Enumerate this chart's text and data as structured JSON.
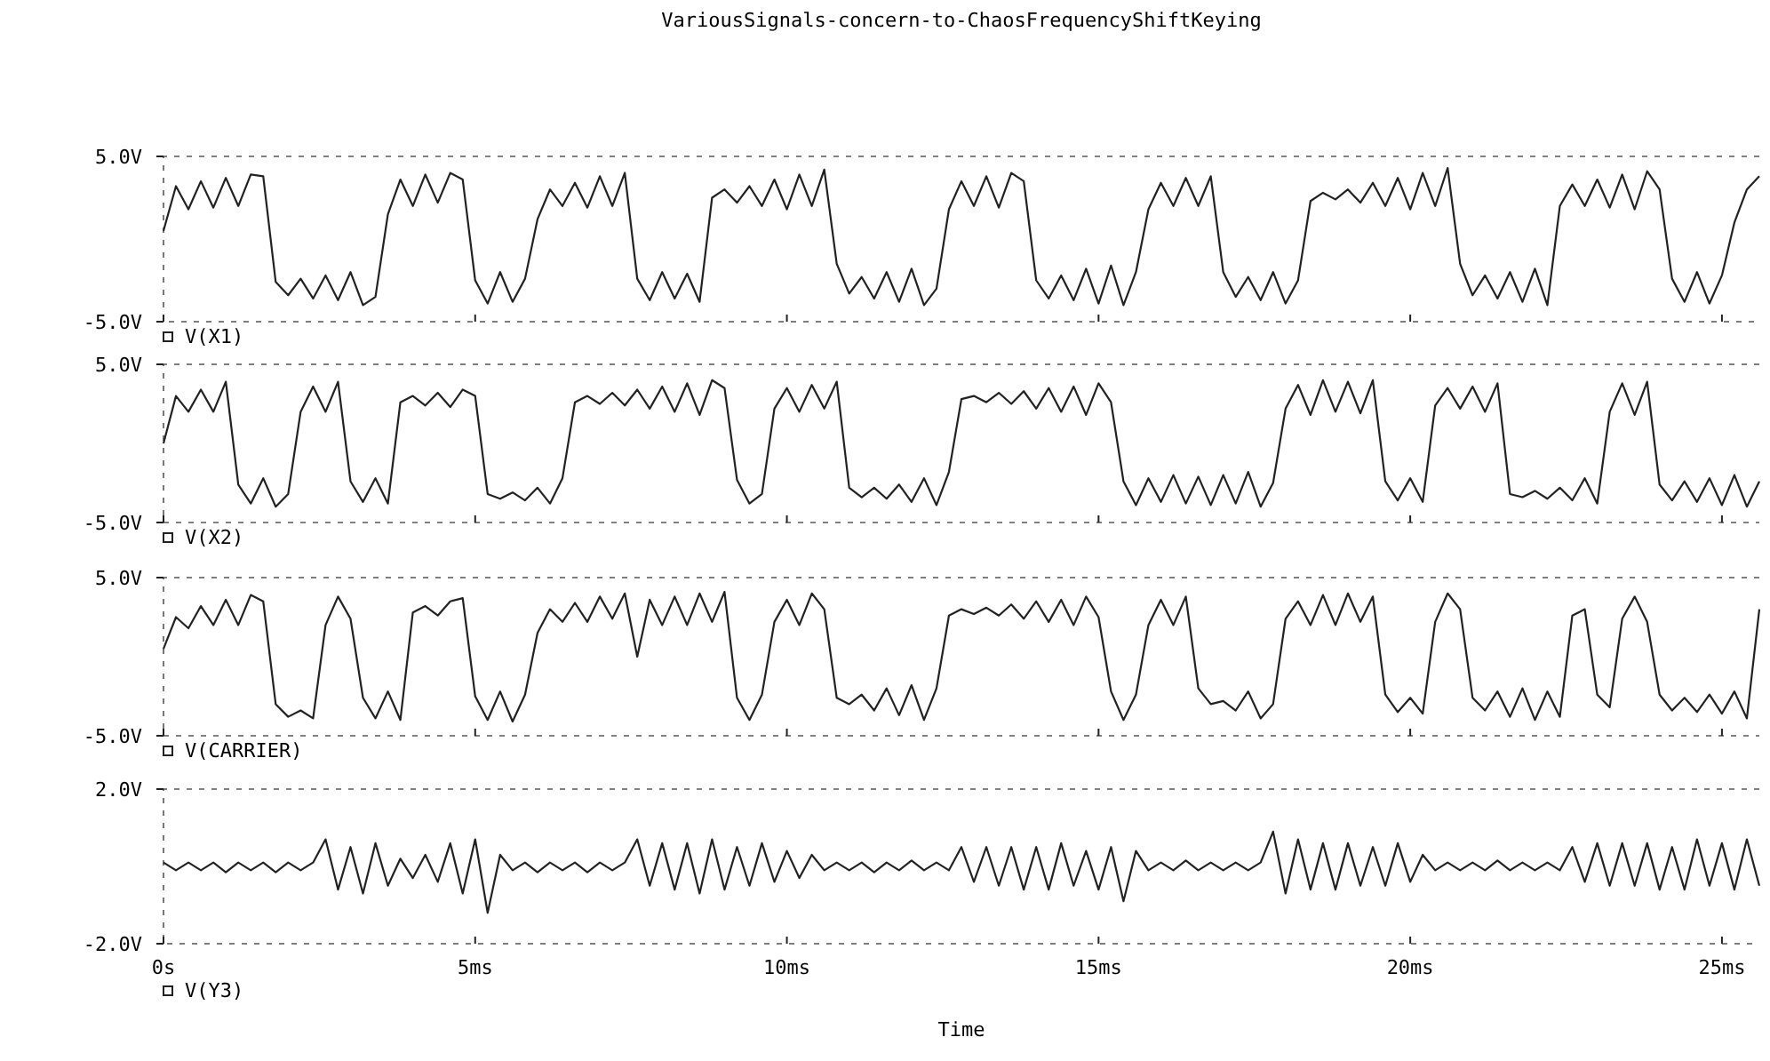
{
  "chart_data": [
    {
      "type": "line",
      "title": "VariousSignals-concern-to-ChaosFrequencyShiftKeying",
      "xlim": [
        0,
        25.6
      ],
      "xticks": [
        {
          "value": 0,
          "label": null
        },
        {
          "value": 5,
          "label": null
        },
        {
          "value": 10,
          "label": null
        },
        {
          "value": 15,
          "label": null
        },
        {
          "value": 20,
          "label": null
        },
        {
          "value": 25,
          "label": null
        }
      ],
      "ylim": [
        -5,
        5
      ],
      "yticks": [
        {
          "value": 5,
          "label": "5.0V"
        },
        {
          "value": -5,
          "label": "-5.0V"
        }
      ],
      "tick_labels": "y",
      "legend": "bottom left",
      "x": [
        0,
        0.2,
        0.4,
        0.6,
        0.8,
        1,
        1.2,
        1.4,
        1.6,
        1.8,
        2,
        2.2,
        2.4,
        2.6,
        2.8,
        3,
        3.2,
        3.4,
        3.6,
        3.8,
        4,
        4.2,
        4.4,
        4.6,
        4.8,
        5,
        5.2,
        5.4,
        5.6,
        5.8,
        6,
        6.2,
        6.4,
        6.6,
        6.8,
        7,
        7.2,
        7.4,
        7.6,
        7.8,
        8,
        8.2,
        8.4,
        8.6,
        8.8,
        9,
        9.2,
        9.4,
        9.6,
        9.8,
        10,
        10.2,
        10.4,
        10.6,
        10.8,
        11,
        11.2,
        11.4,
        11.6,
        11.8,
        12,
        12.2,
        12.4,
        12.6,
        12.8,
        13,
        13.2,
        13.4,
        13.6,
        13.8,
        14,
        14.2,
        14.4,
        14.6,
        14.8,
        15,
        15.2,
        15.4,
        15.6,
        15.8,
        16,
        16.2,
        16.4,
        16.6,
        16.8,
        17,
        17.2,
        17.4,
        17.6,
        17.8,
        18,
        18.2,
        18.4,
        18.6,
        18.8,
        19,
        19.2,
        19.4,
        19.6,
        19.8,
        20,
        20.2,
        20.4,
        20.6,
        20.8,
        21,
        21.2,
        21.4,
        21.6,
        21.8,
        22,
        22.2,
        22.4,
        22.6,
        22.8,
        23,
        23.2,
        23.4,
        23.6,
        23.8,
        24,
        24.2,
        24.4,
        24.6,
        24.8,
        25,
        25.2,
        25.4,
        25.6
      ],
      "series": [
        {
          "name": "V(X1)",
          "color": "#222222",
          "values": [
            0.5,
            3.2,
            1.8,
            3.5,
            1.9,
            3.7,
            2.0,
            3.9,
            3.8,
            -2.6,
            -3.4,
            -2.4,
            -3.6,
            -2.2,
            -3.7,
            -2.0,
            -4.0,
            -3.5,
            1.5,
            3.6,
            2.0,
            3.9,
            2.2,
            4.0,
            3.6,
            -2.5,
            -3.9,
            -2.0,
            -3.8,
            -2.4,
            1.2,
            3.0,
            2.0,
            3.4,
            1.9,
            3.8,
            2.0,
            4.0,
            -2.4,
            -3.7,
            -2.0,
            -3.6,
            -2.1,
            -3.8,
            2.5,
            3.0,
            2.2,
            3.2,
            2.0,
            3.6,
            1.8,
            3.9,
            2.0,
            4.2,
            -1.5,
            -3.3,
            -2.3,
            -3.6,
            -2.0,
            -3.8,
            -1.8,
            -4.0,
            -3.0,
            1.8,
            3.5,
            2.0,
            3.8,
            1.9,
            4.0,
            3.5,
            -2.5,
            -3.6,
            -2.2,
            -3.7,
            -1.8,
            -3.9,
            -1.6,
            -4.0,
            -2.0,
            1.8,
            3.4,
            2.0,
            3.7,
            2.0,
            3.8,
            -2.0,
            -3.5,
            -2.3,
            -3.7,
            -2.0,
            -3.9,
            -2.5,
            2.3,
            2.8,
            2.4,
            3.0,
            2.2,
            3.4,
            2.0,
            3.7,
            1.8,
            4.0,
            2.0,
            4.3,
            -1.5,
            -3.4,
            -2.2,
            -3.6,
            -2.0,
            -3.8,
            -1.8,
            -4.0,
            2.0,
            3.3,
            2.0,
            3.6,
            1.9,
            3.9,
            1.8,
            4.1,
            3.0,
            -2.4,
            -3.8,
            -2.0,
            -3.9,
            -2.2,
            1.0,
            3.0,
            3.8
          ]
        }
      ]
    },
    {
      "type": "line",
      "xlim": [
        0,
        25.6
      ],
      "xticks": [
        {
          "value": 0,
          "label": null
        },
        {
          "value": 5,
          "label": null
        },
        {
          "value": 10,
          "label": null
        },
        {
          "value": 15,
          "label": null
        },
        {
          "value": 20,
          "label": null
        },
        {
          "value": 25,
          "label": null
        }
      ],
      "ylim": [
        -5,
        5
      ],
      "yticks": [
        {
          "value": 5,
          "label": "5.0V"
        },
        {
          "value": -5,
          "label": "-5.0V"
        }
      ],
      "tick_labels": "y",
      "legend": "bottom left",
      "x": [
        0,
        0.2,
        0.4,
        0.6,
        0.8,
        1,
        1.2,
        1.4,
        1.6,
        1.8,
        2,
        2.2,
        2.4,
        2.6,
        2.8,
        3,
        3.2,
        3.4,
        3.6,
        3.8,
        4,
        4.2,
        4.4,
        4.6,
        4.8,
        5,
        5.2,
        5.4,
        5.6,
        5.8,
        6,
        6.2,
        6.4,
        6.6,
        6.8,
        7,
        7.2,
        7.4,
        7.6,
        7.8,
        8,
        8.2,
        8.4,
        8.6,
        8.8,
        9,
        9.2,
        9.4,
        9.6,
        9.8,
        10,
        10.2,
        10.4,
        10.6,
        10.8,
        11,
        11.2,
        11.4,
        11.6,
        11.8,
        12,
        12.2,
        12.4,
        12.6,
        12.8,
        13,
        13.2,
        13.4,
        13.6,
        13.8,
        14,
        14.2,
        14.4,
        14.6,
        14.8,
        15,
        15.2,
        15.4,
        15.6,
        15.8,
        16,
        16.2,
        16.4,
        16.6,
        16.8,
        17,
        17.2,
        17.4,
        17.6,
        17.8,
        18,
        18.2,
        18.4,
        18.6,
        18.8,
        19,
        19.2,
        19.4,
        19.6,
        19.8,
        20,
        20.2,
        20.4,
        20.6,
        20.8,
        21,
        21.2,
        21.4,
        21.6,
        21.8,
        22,
        22.2,
        22.4,
        22.6,
        22.8,
        23,
        23.2,
        23.4,
        23.6,
        23.8,
        24,
        24.2,
        24.4,
        24.6,
        24.8,
        25,
        25.2,
        25.4,
        25.6
      ],
      "series": [
        {
          "name": "V(X2)",
          "color": "#222222",
          "values": [
            0.0,
            3.0,
            2.0,
            3.4,
            2.0,
            3.9,
            -2.6,
            -3.8,
            -2.2,
            -4.0,
            -3.2,
            2.0,
            3.6,
            2.0,
            3.9,
            -2.4,
            -3.7,
            -2.2,
            -3.8,
            2.6,
            3.0,
            2.4,
            3.2,
            2.3,
            3.4,
            3.0,
            -3.2,
            -3.5,
            -3.1,
            -3.6,
            -2.8,
            -3.8,
            -2.2,
            2.6,
            3.0,
            2.5,
            3.2,
            2.4,
            3.4,
            2.2,
            3.6,
            2.0,
            3.8,
            1.8,
            4.0,
            3.5,
            -2.3,
            -3.8,
            -3.2,
            2.2,
            3.5,
            2.0,
            3.7,
            2.2,
            3.9,
            -2.8,
            -3.4,
            -2.8,
            -3.5,
            -2.6,
            -3.7,
            -2.2,
            -3.9,
            -1.8,
            2.8,
            3.0,
            2.6,
            3.2,
            2.5,
            3.3,
            2.2,
            3.5,
            2.0,
            3.6,
            1.8,
            3.8,
            2.6,
            -2.4,
            -3.9,
            -2.2,
            -3.7,
            -2.0,
            -3.8,
            -2.1,
            -3.9,
            -2.0,
            -3.8,
            -1.8,
            -4.0,
            -2.5,
            2.2,
            3.7,
            1.8,
            4.0,
            2.0,
            3.9,
            1.9,
            4.0,
            -2.4,
            -3.6,
            -2.2,
            -3.7,
            2.4,
            3.5,
            2.2,
            3.6,
            2.0,
            3.8,
            -3.2,
            -3.4,
            -3.0,
            -3.5,
            -2.8,
            -3.6,
            -2.2,
            -3.8,
            2.0,
            3.8,
            1.8,
            3.9,
            -2.6,
            -3.6,
            -2.4,
            -3.7,
            -2.2,
            -3.9,
            -2.0,
            -4.0,
            -2.4
          ]
        }
      ]
    },
    {
      "type": "line",
      "xlim": [
        0,
        25.6
      ],
      "xticks": [
        {
          "value": 0,
          "label": null
        },
        {
          "value": 5,
          "label": null
        },
        {
          "value": 10,
          "label": null
        },
        {
          "value": 15,
          "label": null
        },
        {
          "value": 20,
          "label": null
        },
        {
          "value": 25,
          "label": null
        }
      ],
      "ylim": [
        -5,
        5
      ],
      "yticks": [
        {
          "value": 5,
          "label": "5.0V"
        },
        {
          "value": -5,
          "label": "-5.0V"
        }
      ],
      "tick_labels": "y",
      "legend": "bottom left",
      "x": [
        0,
        0.2,
        0.4,
        0.6,
        0.8,
        1,
        1.2,
        1.4,
        1.6,
        1.8,
        2,
        2.2,
        2.4,
        2.6,
        2.8,
        3,
        3.2,
        3.4,
        3.6,
        3.8,
        4,
        4.2,
        4.4,
        4.6,
        4.8,
        5,
        5.2,
        5.4,
        5.6,
        5.8,
        6,
        6.2,
        6.4,
        6.6,
        6.8,
        7,
        7.2,
        7.4,
        7.6,
        7.8,
        8,
        8.2,
        8.4,
        8.6,
        8.8,
        9,
        9.2,
        9.4,
        9.6,
        9.8,
        10,
        10.2,
        10.4,
        10.6,
        10.8,
        11,
        11.2,
        11.4,
        11.6,
        11.8,
        12,
        12.2,
        12.4,
        12.6,
        12.8,
        13,
        13.2,
        13.4,
        13.6,
        13.8,
        14,
        14.2,
        14.4,
        14.6,
        14.8,
        15,
        15.2,
        15.4,
        15.6,
        15.8,
        16,
        16.2,
        16.4,
        16.6,
        16.8,
        17,
        17.2,
        17.4,
        17.6,
        17.8,
        18,
        18.2,
        18.4,
        18.6,
        18.8,
        19,
        19.2,
        19.4,
        19.6,
        19.8,
        20,
        20.2,
        20.4,
        20.6,
        20.8,
        21,
        21.2,
        21.4,
        21.6,
        21.8,
        22,
        22.2,
        22.4,
        22.6,
        22.8,
        23,
        23.2,
        23.4,
        23.6,
        23.8,
        24,
        24.2,
        24.4,
        24.6,
        24.8,
        25,
        25.2,
        25.4,
        25.6
      ],
      "series": [
        {
          "name": "V(CARRIER)",
          "color": "#222222",
          "values": [
            0.5,
            2.5,
            1.8,
            3.2,
            2.0,
            3.6,
            2.0,
            3.9,
            3.5,
            -3.0,
            -3.8,
            -3.4,
            -3.9,
            2.0,
            3.8,
            2.4,
            -2.6,
            -3.9,
            -2.2,
            -4.0,
            2.8,
            3.2,
            2.6,
            3.5,
            3.7,
            -2.5,
            -4.0,
            -2.2,
            -4.1,
            -2.4,
            1.5,
            3.0,
            2.2,
            3.4,
            2.2,
            3.8,
            2.4,
            4.0,
            0.0,
            3.6,
            2.0,
            3.8,
            2.0,
            4.0,
            2.2,
            4.1,
            -2.6,
            -4.0,
            -2.4,
            2.2,
            3.6,
            2.0,
            4.0,
            3.0,
            -2.6,
            -3.0,
            -2.4,
            -3.4,
            -2.0,
            -3.7,
            -1.8,
            -4.0,
            -2.0,
            2.6,
            3.0,
            2.7,
            3.1,
            2.6,
            3.3,
            2.4,
            3.5,
            2.2,
            3.6,
            2.0,
            3.8,
            2.5,
            -2.2,
            -4.0,
            -2.4,
            2.0,
            3.6,
            2.0,
            3.8,
            -2.0,
            -3.0,
            -2.8,
            -3.4,
            -2.2,
            -3.9,
            -3.0,
            2.4,
            3.5,
            2.0,
            3.9,
            2.0,
            4.0,
            2.2,
            3.8,
            -2.4,
            -3.5,
            -2.6,
            -3.6,
            2.2,
            4.0,
            3.0,
            -2.6,
            -3.4,
            -2.2,
            -3.8,
            -2.0,
            -4.0,
            -2.2,
            -3.8,
            2.6,
            3.0,
            -2.4,
            -3.2,
            2.4,
            3.8,
            2.2,
            -2.4,
            -3.4,
            -2.6,
            -3.5,
            -2.4,
            -3.6,
            -2.2,
            -3.9,
            3.0
          ]
        }
      ]
    },
    {
      "type": "line",
      "xlabel": "Time",
      "xlim": [
        0,
        25.6
      ],
      "xticks": [
        {
          "value": 0,
          "label": "0s"
        },
        {
          "value": 5,
          "label": "5ms"
        },
        {
          "value": 10,
          "label": "10ms"
        },
        {
          "value": 15,
          "label": "15ms"
        },
        {
          "value": 20,
          "label": "20ms"
        },
        {
          "value": 25,
          "label": "25ms"
        }
      ],
      "ylim": [
        -2,
        2
      ],
      "yticks": [
        {
          "value": 2,
          "label": "2.0V"
        },
        {
          "value": -2,
          "label": "-2.0V"
        }
      ],
      "legend": "bottom left",
      "x": [
        0,
        0.2,
        0.4,
        0.6,
        0.8,
        1,
        1.2,
        1.4,
        1.6,
        1.8,
        2,
        2.2,
        2.4,
        2.6,
        2.8,
        3,
        3.2,
        3.4,
        3.6,
        3.8,
        4,
        4.2,
        4.4,
        4.6,
        4.8,
        5,
        5.2,
        5.4,
        5.6,
        5.8,
        6,
        6.2,
        6.4,
        6.6,
        6.8,
        7,
        7.2,
        7.4,
        7.6,
        7.8,
        8,
        8.2,
        8.4,
        8.6,
        8.8,
        9,
        9.2,
        9.4,
        9.6,
        9.8,
        10,
        10.2,
        10.4,
        10.6,
        10.8,
        11,
        11.2,
        11.4,
        11.6,
        11.8,
        12,
        12.2,
        12.4,
        12.6,
        12.8,
        13,
        13.2,
        13.4,
        13.6,
        13.8,
        14,
        14.2,
        14.4,
        14.6,
        14.8,
        15,
        15.2,
        15.4,
        15.6,
        15.8,
        16,
        16.2,
        16.4,
        16.6,
        16.8,
        17,
        17.2,
        17.4,
        17.6,
        17.8,
        18,
        18.2,
        18.4,
        18.6,
        18.8,
        19,
        19.2,
        19.4,
        19.6,
        19.8,
        20,
        20.2,
        20.4,
        20.6,
        20.8,
        21,
        21.2,
        21.4,
        21.6,
        21.8,
        22,
        22.2,
        22.4,
        22.6,
        22.8,
        23,
        23.2,
        23.4,
        23.6,
        23.8,
        24,
        24.2,
        24.4,
        24.6,
        24.8,
        25,
        25.2,
        25.4,
        25.6
      ],
      "series": [
        {
          "name": "V(Y3)",
          "color": "#222222",
          "values": [
            0.1,
            -0.1,
            0.1,
            -0.1,
            0.1,
            -0.15,
            0.1,
            -0.1,
            0.1,
            -0.15,
            0.1,
            -0.1,
            0.1,
            0.7,
            -0.6,
            0.5,
            -0.7,
            0.6,
            -0.5,
            0.2,
            -0.3,
            0.3,
            -0.4,
            0.6,
            -0.7,
            0.7,
            -1.2,
            0.3,
            -0.1,
            0.1,
            -0.15,
            0.1,
            -0.1,
            0.1,
            -0.15,
            0.1,
            -0.1,
            0.1,
            0.7,
            -0.5,
            0.6,
            -0.6,
            0.6,
            -0.7,
            0.7,
            -0.6,
            0.5,
            -0.5,
            0.6,
            -0.4,
            0.4,
            -0.3,
            0.3,
            -0.1,
            0.1,
            -0.1,
            0.1,
            -0.15,
            0.1,
            -0.1,
            0.15,
            -0.1,
            0.1,
            -0.1,
            0.5,
            -0.4,
            0.5,
            -0.5,
            0.5,
            -0.6,
            0.5,
            -0.6,
            0.6,
            -0.5,
            0.4,
            -0.6,
            0.5,
            -0.9,
            0.4,
            -0.1,
            0.1,
            -0.1,
            0.15,
            -0.1,
            0.1,
            -0.1,
            0.1,
            -0.1,
            0.1,
            0.9,
            -0.7,
            0.7,
            -0.6,
            0.6,
            -0.6,
            0.6,
            -0.5,
            0.5,
            -0.5,
            0.6,
            -0.4,
            0.3,
            -0.1,
            0.1,
            -0.1,
            0.1,
            -0.1,
            0.15,
            -0.1,
            0.1,
            -0.1,
            0.1,
            -0.1,
            0.5,
            -0.4,
            0.6,
            -0.5,
            0.6,
            -0.5,
            0.6,
            -0.6,
            0.5,
            -0.6,
            0.7,
            -0.5,
            0.6,
            -0.6,
            0.7,
            -0.5
          ]
        }
      ]
    }
  ]
}
